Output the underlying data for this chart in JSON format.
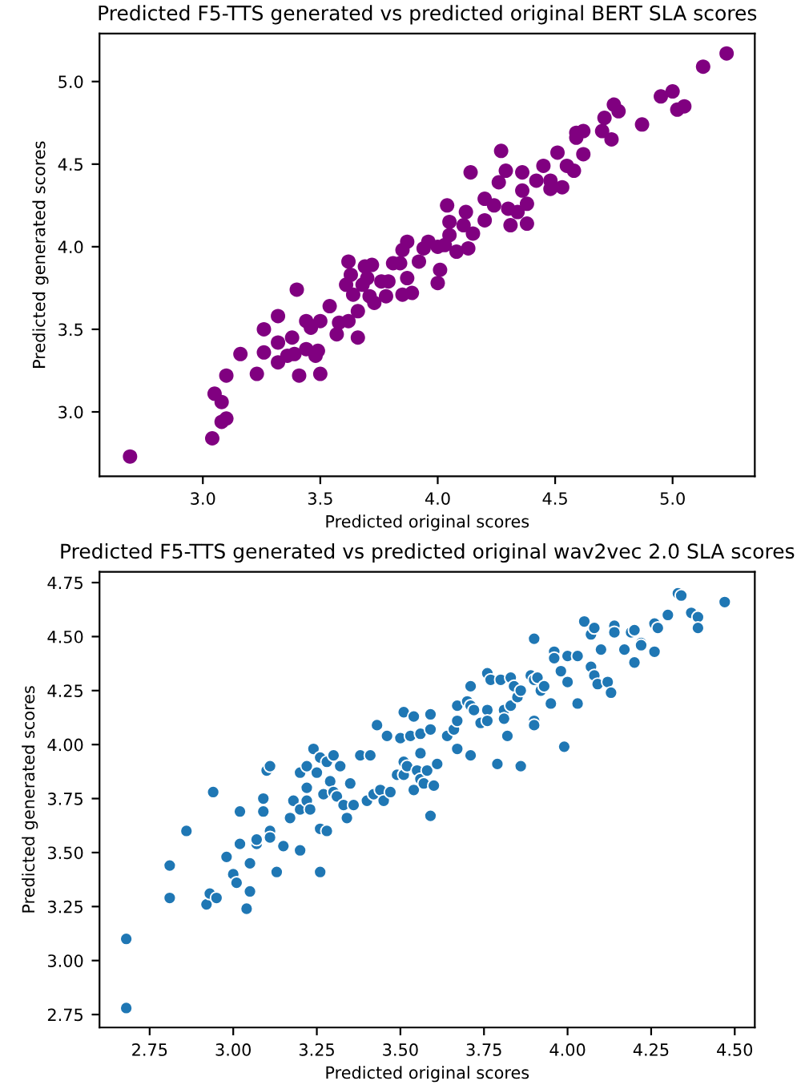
{
  "chart_data": [
    {
      "type": "scatter",
      "title": "Predicted F5-TTS generated vs predicted original BERT SLA scores",
      "xlabel": "Predicted original scores",
      "ylabel": "Predicted generated scores",
      "marker": "circle",
      "grid": false,
      "xlim": [
        2.56,
        5.35
      ],
      "ylim": [
        2.61,
        5.29
      ],
      "xticks": [
        {
          "value": 3,
          "label": "3.0"
        },
        {
          "value": 3.5,
          "label": "3.5"
        },
        {
          "value": 4,
          "label": "4.0"
        },
        {
          "value": 4.5,
          "label": "4.5"
        },
        {
          "value": 5,
          "label": "5.0"
        }
      ],
      "yticks": [
        {
          "value": 3,
          "label": "3.0"
        },
        {
          "value": 3.5,
          "label": "3.5"
        },
        {
          "value": 4,
          "label": "4.0"
        },
        {
          "value": 4.5,
          "label": "4.5"
        },
        {
          "value": 5,
          "label": "5.0"
        }
      ],
      "series": [
        {
          "color": "#800080",
          "x": [
            2.69,
            3.04,
            3.05,
            3.08,
            3.08,
            3.1,
            3.1,
            3.16,
            3.23,
            3.26,
            3.26,
            3.32,
            3.32,
            3.32,
            3.38,
            3.36,
            3.39,
            3.41,
            3.4,
            3.44,
            3.46,
            3.44,
            3.48,
            3.49,
            3.5,
            3.5,
            3.54,
            3.57,
            3.58,
            3.62,
            3.66,
            3.66,
            3.62,
            3.63,
            3.61,
            3.64,
            3.69,
            3.72,
            3.7,
            3.68,
            3.71,
            3.73,
            3.78,
            3.76,
            3.79,
            3.81,
            3.84,
            3.87,
            3.85,
            3.89,
            3.85,
            3.87,
            3.92,
            3.94,
            3.96,
            4.0,
            4.01,
            4.0,
            4.03,
            4.05,
            4.05,
            4.04,
            4.08,
            4.12,
            4.13,
            4.11,
            4.15,
            4.14,
            4.2,
            4.2,
            4.24,
            4.26,
            4.27,
            4.29,
            4.31,
            4.3,
            4.34,
            4.36,
            4.36,
            4.38,
            4.38,
            4.42,
            4.45,
            4.48,
            4.48,
            4.51,
            4.53,
            4.55,
            4.58,
            4.59,
            4.59,
            4.62,
            4.62,
            4.7,
            4.71,
            4.74,
            4.75,
            4.77,
            4.87,
            4.95,
            5.0,
            5.02,
            5.05,
            5.13,
            5.23
          ],
          "values": [
            2.73,
            2.84,
            3.11,
            3.06,
            2.94,
            2.96,
            3.22,
            3.35,
            3.23,
            3.5,
            3.36,
            3.58,
            3.42,
            3.3,
            3.45,
            3.34,
            3.35,
            3.22,
            3.74,
            3.55,
            3.51,
            3.38,
            3.34,
            3.37,
            3.55,
            3.23,
            3.64,
            3.47,
            3.54,
            3.55,
            3.45,
            3.61,
            3.91,
            3.83,
            3.77,
            3.71,
            3.88,
            3.89,
            3.81,
            3.77,
            3.7,
            3.66,
            3.7,
            3.79,
            3.79,
            3.9,
            3.9,
            3.81,
            3.71,
            3.72,
            3.98,
            4.03,
            3.91,
            3.99,
            4.03,
            4.0,
            3.86,
            3.78,
            4.01,
            4.07,
            4.15,
            4.25,
            3.97,
            4.21,
            3.99,
            4.13,
            4.08,
            4.45,
            4.16,
            4.29,
            4.25,
            4.39,
            4.58,
            4.46,
            4.13,
            4.23,
            4.21,
            4.34,
            4.45,
            4.14,
            4.26,
            4.4,
            4.49,
            4.35,
            4.4,
            4.57,
            4.36,
            4.49,
            4.46,
            4.66,
            4.69,
            4.7,
            4.56,
            4.7,
            4.78,
            4.65,
            4.86,
            4.82,
            4.74,
            4.91,
            4.94,
            4.83,
            4.85,
            5.09,
            5.17
          ]
        }
      ]
    },
    {
      "type": "scatter",
      "title": "Predicted F5-TTS generated vs predicted original wav2vec 2.0 SLA scores",
      "xlabel": "Predicted original scores",
      "ylabel": "Predicted generated scores",
      "marker": "circle",
      "grid": false,
      "xlim": [
        2.6,
        4.56
      ],
      "ylim": [
        2.69,
        4.8
      ],
      "xticks": [
        {
          "value": 2.75,
          "label": "2.75"
        },
        {
          "value": 3,
          "label": "3.00"
        },
        {
          "value": 3.25,
          "label": "3.25"
        },
        {
          "value": 3.5,
          "label": "3.50"
        },
        {
          "value": 3.75,
          "label": "3.75"
        },
        {
          "value": 4,
          "label": "4.00"
        },
        {
          "value": 4.25,
          "label": "4.25"
        },
        {
          "value": 4.5,
          "label": "4.50"
        }
      ],
      "yticks": [
        {
          "value": 2.75,
          "label": "2.75"
        },
        {
          "value": 3,
          "label": "3.00"
        },
        {
          "value": 3.25,
          "label": "3.25"
        },
        {
          "value": 3.5,
          "label": "3.50"
        },
        {
          "value": 3.75,
          "label": "3.75"
        },
        {
          "value": 4,
          "label": "4.00"
        },
        {
          "value": 4.25,
          "label": "4.25"
        },
        {
          "value": 4.5,
          "label": "4.50"
        },
        {
          "value": 4.75,
          "label": "4.75"
        }
      ],
      "series": [
        {
          "color": "#1f77b4",
          "x": [
            2.68,
            2.68,
            2.81,
            2.81,
            2.86,
            2.92,
            2.93,
            2.95,
            2.94,
            2.98,
            3.0,
            3.01,
            3.04,
            3.05,
            3.05,
            3.02,
            3.02,
            3.07,
            3.07,
            3.09,
            3.09,
            3.1,
            3.11,
            3.11,
            3.11,
            3.13,
            3.15,
            3.17,
            3.18,
            3.2,
            3.2,
            3.2,
            3.22,
            3.22,
            3.22,
            3.23,
            3.24,
            3.25,
            3.26,
            3.26,
            3.26,
            3.27,
            3.28,
            3.28,
            3.29,
            3.3,
            3.3,
            3.31,
            3.32,
            3.33,
            3.34,
            3.35,
            3.36,
            3.38,
            3.4,
            3.41,
            3.42,
            3.43,
            3.44,
            3.45,
            3.46,
            3.47,
            3.49,
            3.5,
            3.51,
            3.51,
            3.51,
            3.52,
            3.53,
            3.54,
            3.54,
            3.55,
            3.56,
            3.56,
            3.56,
            3.57,
            3.58,
            3.59,
            3.59,
            3.59,
            3.6,
            3.61,
            3.64,
            3.66,
            3.67,
            3.67,
            3.67,
            3.7,
            3.71,
            3.71,
            3.71,
            3.72,
            3.74,
            3.76,
            3.76,
            3.76,
            3.77,
            3.79,
            3.8,
            3.81,
            3.81,
            3.82,
            3.83,
            3.83,
            3.84,
            3.85,
            3.86,
            3.86,
            3.89,
            3.9,
            3.9,
            3.9,
            3.9,
            3.91,
            3.92,
            3.93,
            3.95,
            3.96,
            3.96,
            3.98,
            3.99,
            4.0,
            4.0,
            4.03,
            4.03,
            4.05,
            4.07,
            4.07,
            4.08,
            4.08,
            4.09,
            4.1,
            4.12,
            4.13,
            4.14,
            4.14,
            4.17,
            4.19,
            4.2,
            4.2,
            4.22,
            4.22,
            4.26,
            4.26,
            4.27,
            4.3,
            4.33,
            4.34,
            4.37,
            4.39,
            4.39,
            4.47
          ],
          "values": [
            2.78,
            3.1,
            3.29,
            3.44,
            3.6,
            3.26,
            3.31,
            3.29,
            3.78,
            3.48,
            3.4,
            3.36,
            3.24,
            3.45,
            3.32,
            3.69,
            3.54,
            3.54,
            3.56,
            3.75,
            3.69,
            3.88,
            3.9,
            3.6,
            3.57,
            3.41,
            3.53,
            3.66,
            3.74,
            3.7,
            3.51,
            3.87,
            3.8,
            3.74,
            3.9,
            3.7,
            3.98,
            3.87,
            3.94,
            3.41,
            3.61,
            3.77,
            3.92,
            3.6,
            3.83,
            3.78,
            3.95,
            3.76,
            3.9,
            3.72,
            3.66,
            3.82,
            3.72,
            3.95,
            3.74,
            3.95,
            3.77,
            4.09,
            3.79,
            3.74,
            4.04,
            3.78,
            3.86,
            4.03,
            4.15,
            3.92,
            3.86,
            3.9,
            4.04,
            4.13,
            3.79,
            3.88,
            3.96,
            4.05,
            3.84,
            3.82,
            3.88,
            3.67,
            4.07,
            4.14,
            3.81,
            3.91,
            4.04,
            4.07,
            4.11,
            3.98,
            4.18,
            4.2,
            4.18,
            4.27,
            3.95,
            4.16,
            4.1,
            4.33,
            4.16,
            4.11,
            4.3,
            3.91,
            4.3,
            4.16,
            4.12,
            4.04,
            4.18,
            4.31,
            4.27,
            4.22,
            4.25,
            3.9,
            4.32,
            4.49,
            4.11,
            4.09,
            4.3,
            4.31,
            4.25,
            4.27,
            4.19,
            4.43,
            4.4,
            4.34,
            3.99,
            4.41,
            4.29,
            4.19,
            4.41,
            4.57,
            4.51,
            4.36,
            4.54,
            4.32,
            4.28,
            4.44,
            4.29,
            4.24,
            4.55,
            4.52,
            4.44,
            4.52,
            4.53,
            4.38,
            4.47,
            4.46,
            4.43,
            4.56,
            4.54,
            4.6,
            4.7,
            4.69,
            4.61,
            4.59,
            4.54,
            4.66
          ]
        }
      ]
    }
  ]
}
